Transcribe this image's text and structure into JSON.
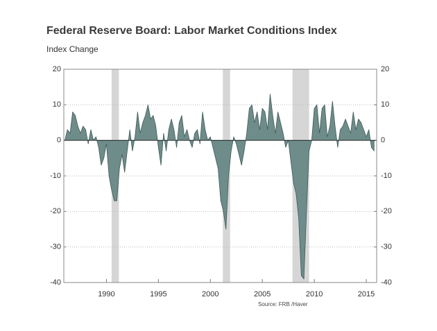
{
  "chart_data": {
    "type": "area",
    "title": "Federal Reserve Board: Labor Market Conditions Index",
    "subtitle": "Index Change",
    "source": "Source: FRB /Haver",
    "color": "#6e8c89",
    "line_color": "#3f5a58",
    "recession_color": "#d6d6d6",
    "recessions": [
      [
        1990.5,
        1991.2
      ],
      [
        2001.2,
        2001.9
      ],
      [
        2007.9,
        2009.5
      ]
    ],
    "grid": true,
    "xlim": [
      1985.9,
      2016
    ],
    "xticks": [
      1990,
      1995,
      2000,
      2005,
      2010,
      2015
    ],
    "ylim": [
      -40,
      20
    ],
    "yticks": [
      20,
      10,
      0,
      -10,
      -20,
      -30,
      -40
    ],
    "y2lim": [
      -40,
      20
    ],
    "y2ticks": [
      20,
      10,
      0,
      -10,
      -20,
      -30,
      -40
    ],
    "x": [
      1986,
      1986.25,
      1986.5,
      1986.75,
      1987,
      1987.25,
      1987.5,
      1987.75,
      1988,
      1988.25,
      1988.5,
      1988.75,
      1989,
      1989.25,
      1989.5,
      1989.75,
      1990,
      1990.25,
      1990.5,
      1990.75,
      1991,
      1991.25,
      1991.5,
      1991.75,
      1992,
      1992.25,
      1992.5,
      1992.75,
      1993,
      1993.25,
      1993.5,
      1993.75,
      1994,
      1994.25,
      1994.5,
      1994.75,
      1995,
      1995.25,
      1995.5,
      1995.75,
      1996,
      1996.25,
      1996.5,
      1996.75,
      1997,
      1997.25,
      1997.5,
      1997.75,
      1998,
      1998.25,
      1998.5,
      1998.75,
      1999,
      1999.25,
      1999.5,
      1999.75,
      2000,
      2000.25,
      2000.5,
      2000.75,
      2001,
      2001.25,
      2001.5,
      2001.75,
      2002,
      2002.25,
      2002.5,
      2002.75,
      2003,
      2003.25,
      2003.5,
      2003.75,
      2004,
      2004.25,
      2004.5,
      2004.75,
      2005,
      2005.25,
      2005.5,
      2005.75,
      2006,
      2006.25,
      2006.5,
      2006.75,
      2007,
      2007.25,
      2007.5,
      2007.75,
      2008,
      2008.25,
      2008.5,
      2008.75,
      2009,
      2009.25,
      2009.5,
      2009.75,
      2010,
      2010.25,
      2010.5,
      2010.75,
      2011,
      2011.25,
      2011.5,
      2011.75,
      2012,
      2012.25,
      2012.5,
      2012.75,
      2013,
      2013.25,
      2013.5,
      2013.75,
      2014,
      2014.25,
      2014.5,
      2014.75,
      2015,
      2015.25,
      2015.5,
      2015.75
    ],
    "values": [
      0,
      3,
      2,
      8,
      7,
      4,
      2,
      4,
      3,
      -1,
      3,
      0,
      1,
      -2,
      -7,
      -5,
      -1,
      -10,
      -14,
      -17,
      -17,
      -8,
      -4,
      -9,
      -3,
      3,
      -3,
      1,
      8,
      2,
      5,
      7,
      10,
      6,
      7,
      4,
      -2,
      -7,
      2,
      -3,
      3,
      6,
      3,
      -2,
      5,
      7,
      1,
      3,
      0,
      -2,
      2,
      3,
      -1,
      8,
      3,
      0,
      1,
      -2,
      -5,
      -8,
      -17,
      -20,
      -25,
      -10,
      -3,
      1,
      -1,
      -4,
      -7,
      -3,
      2,
      9,
      10,
      5,
      8,
      3,
      9,
      8,
      3,
      13,
      7,
      2,
      8,
      5,
      2,
      -2,
      0,
      -6,
      -12,
      -15,
      -22,
      -38,
      -39,
      -20,
      -3,
      0,
      9,
      10,
      2,
      9,
      10,
      1,
      4,
      11,
      4,
      -2,
      3,
      4,
      6,
      4,
      2,
      8,
      3,
      6,
      5,
      3,
      1,
      3,
      -2,
      -3
    ]
  }
}
